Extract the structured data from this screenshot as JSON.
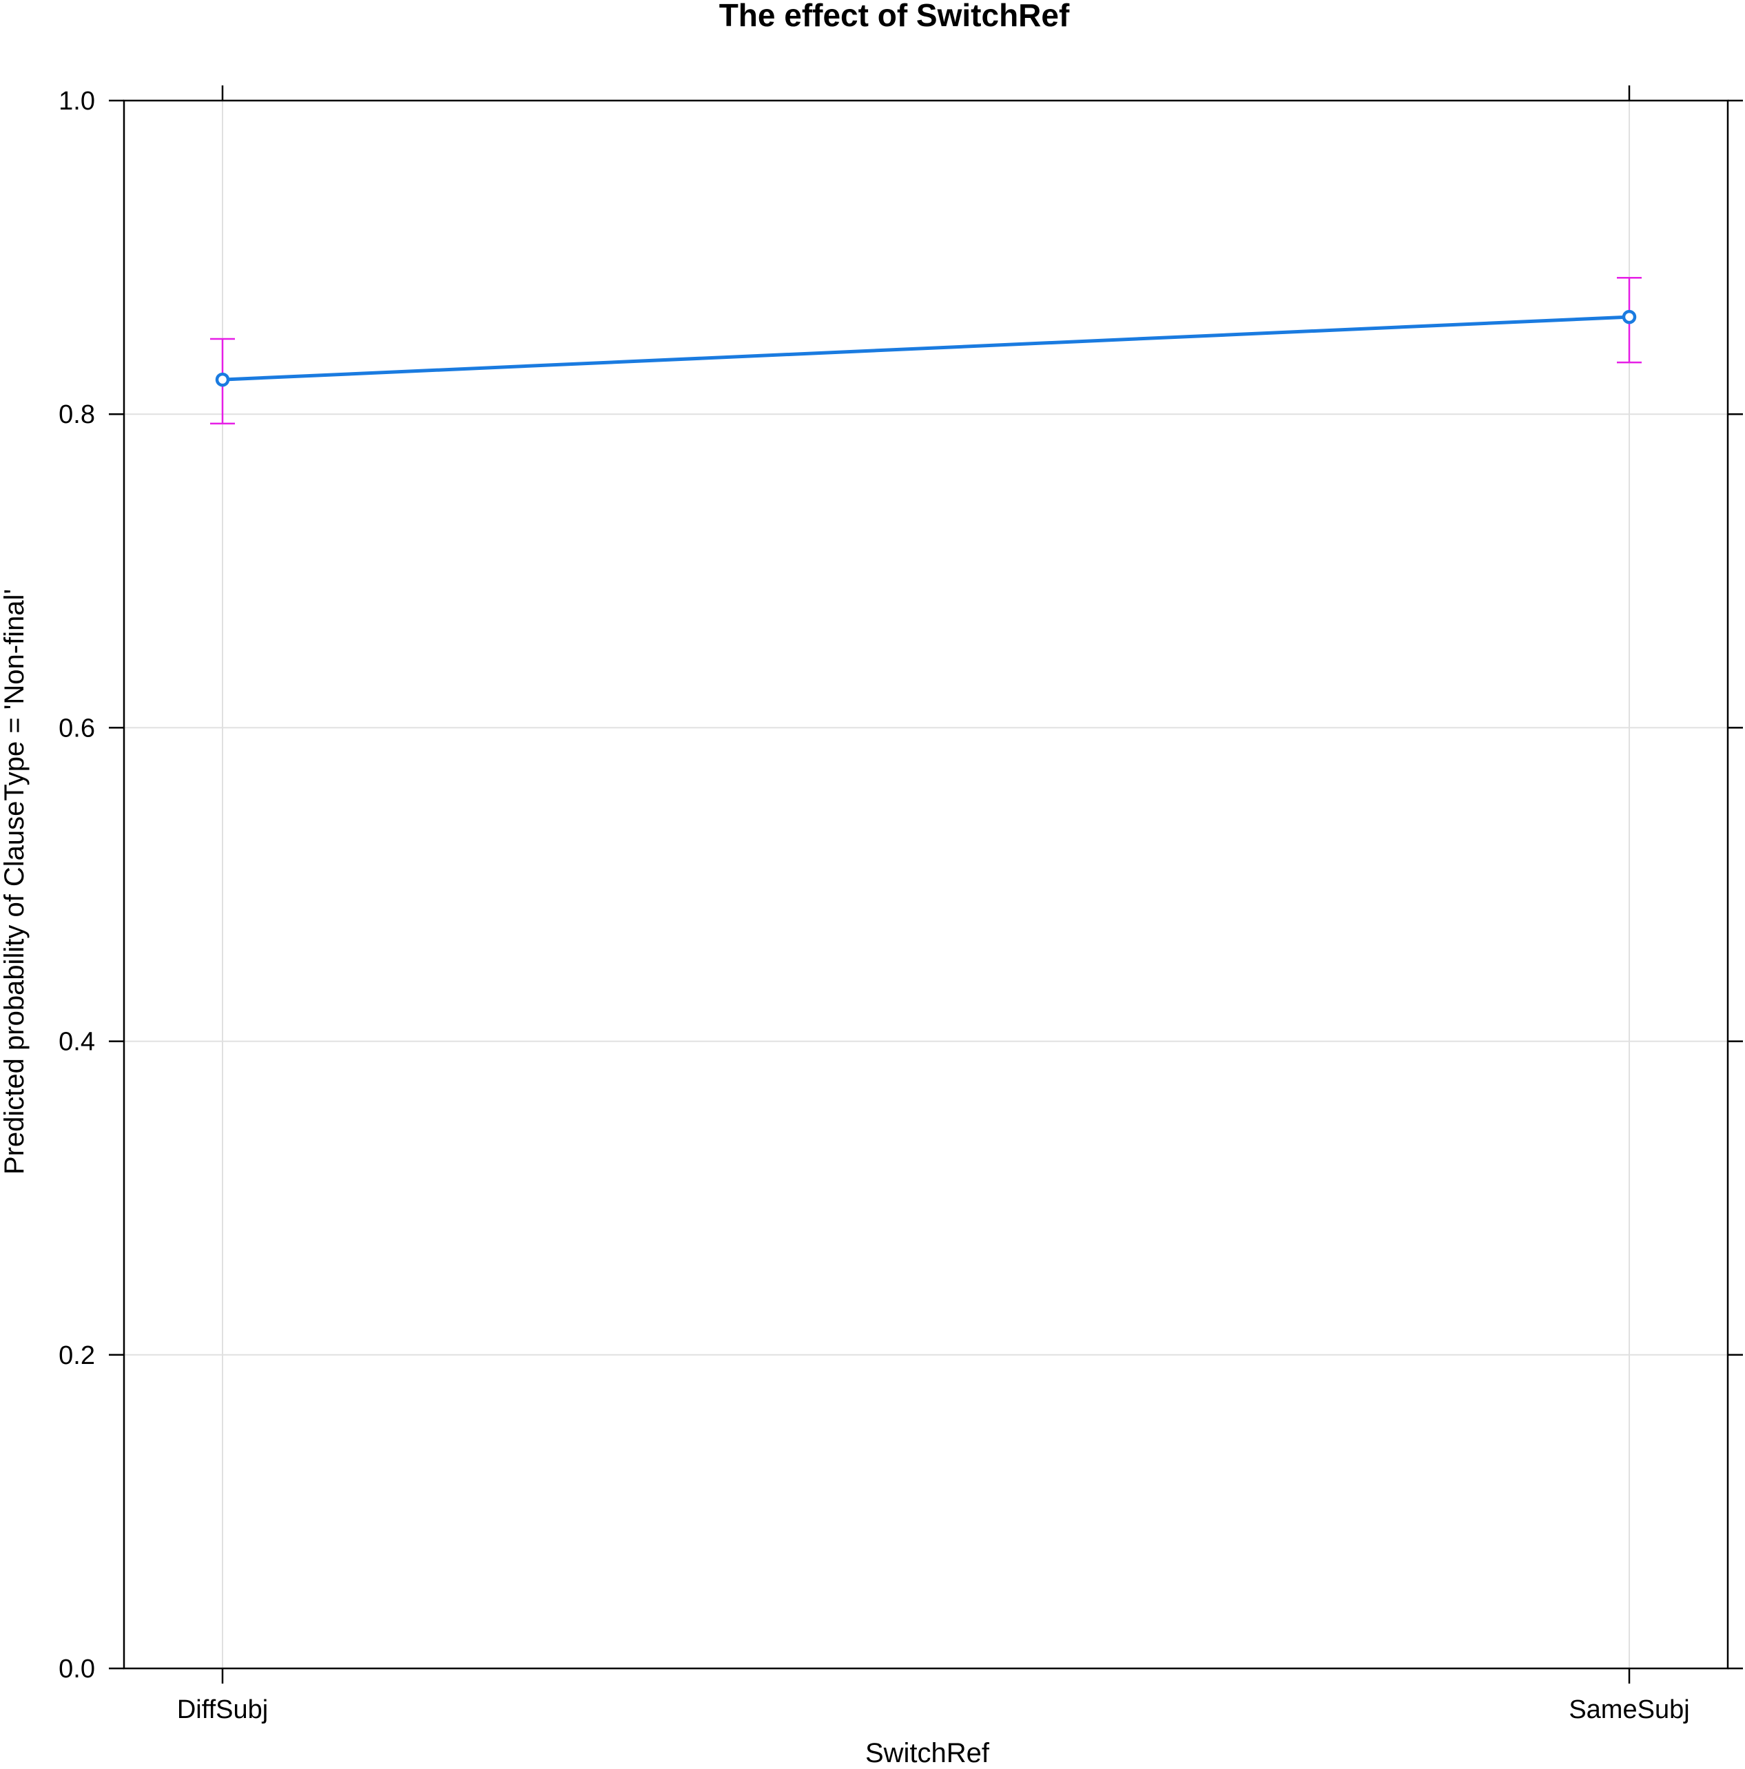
{
  "chart_data": {
    "type": "line",
    "title": "The effect of SwitchRef",
    "xlabel": "SwitchRef",
    "ylabel": "Predicted probability of ClauseType = 'Non-final'",
    "categories": [
      "DiffSubj",
      "SameSubj"
    ],
    "values": [
      0.822,
      0.862
    ],
    "ci_lower": [
      0.794,
      0.833
    ],
    "ci_upper": [
      0.848,
      0.887
    ],
    "ylim": [
      0.0,
      1.0
    ],
    "yticks": [
      "0.0",
      "0.2",
      "0.4",
      "0.6",
      "0.8",
      "1.0"
    ],
    "grid": true
  },
  "colors": {
    "line": "#1a7be0",
    "error_bars": "#e61ee6",
    "grid": "#e0e0e0",
    "axis": "#000000"
  }
}
